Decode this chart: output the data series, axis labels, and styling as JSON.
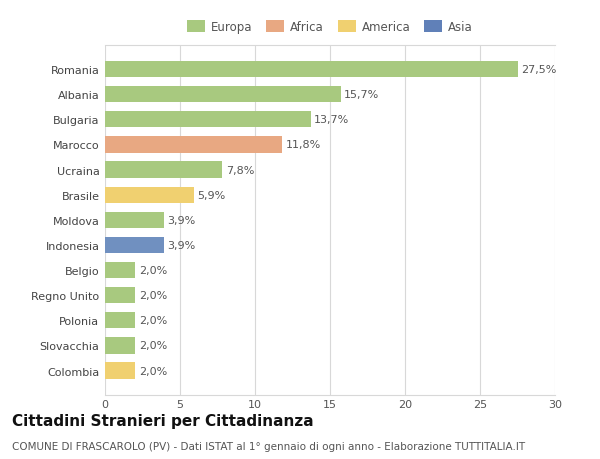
{
  "categories": [
    "Romania",
    "Albania",
    "Bulgaria",
    "Marocco",
    "Ucraina",
    "Brasile",
    "Moldova",
    "Indonesia",
    "Belgio",
    "Regno Unito",
    "Polonia",
    "Slovacchia",
    "Colombia"
  ],
  "values": [
    27.5,
    15.7,
    13.7,
    11.8,
    7.8,
    5.9,
    3.9,
    3.9,
    2.0,
    2.0,
    2.0,
    2.0,
    2.0
  ],
  "labels": [
    "27,5%",
    "15,7%",
    "13,7%",
    "11,8%",
    "7,8%",
    "5,9%",
    "3,9%",
    "3,9%",
    "2,0%",
    "2,0%",
    "2,0%",
    "2,0%",
    "2,0%"
  ],
  "bar_colors": [
    "#a8c97f",
    "#a8c97f",
    "#a8c97f",
    "#e8a882",
    "#a8c97f",
    "#f0d070",
    "#a8c97f",
    "#7090c0",
    "#a8c97f",
    "#a8c97f",
    "#a8c97f",
    "#a8c97f",
    "#f0d070"
  ],
  "legend_labels": [
    "Europa",
    "Africa",
    "America",
    "Asia"
  ],
  "legend_colors": [
    "#a8c97f",
    "#e8a882",
    "#f0d070",
    "#6080b8"
  ],
  "title": "Cittadini Stranieri per Cittadinanza",
  "subtitle": "COMUNE DI FRASCAROLO (PV) - Dati ISTAT al 1° gennaio di ogni anno - Elaborazione TUTTITALIA.IT",
  "xlim": [
    0,
    30
  ],
  "xticks": [
    0,
    5,
    10,
    15,
    20,
    25,
    30
  ],
  "background_color": "#ffffff",
  "grid_color": "#d8d8d8",
  "bar_height": 0.65,
  "title_fontsize": 11,
  "subtitle_fontsize": 7.5,
  "label_fontsize": 8,
  "tick_fontsize": 8,
  "legend_fontsize": 8.5
}
